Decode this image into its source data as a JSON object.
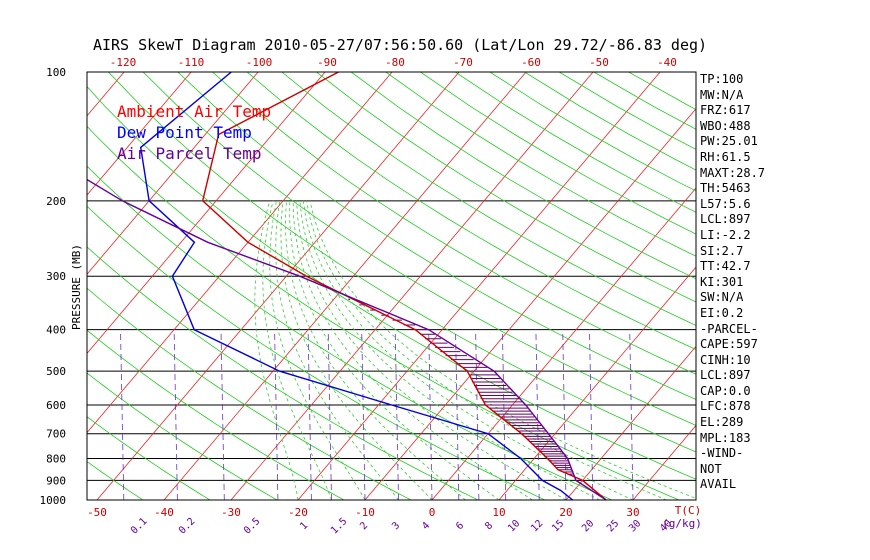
{
  "chart_data": {
    "type": "line",
    "title": "AIRS SkewT Diagram 2010-05-27/07:56:50.60 (Lat/Lon 29.72/-86.83 deg)",
    "ylabel": "PRESSURE (MB)",
    "pressure_ticks": [
      100,
      200,
      300,
      400,
      500,
      600,
      700,
      800,
      900,
      1000
    ],
    "top_temp_ticks": [
      -120,
      -110,
      -100,
      -90,
      -80,
      -70,
      -60,
      -50,
      -40
    ],
    "bottom_temp_ticks": [
      -50,
      -40,
      -30,
      -20,
      -10,
      0,
      10,
      20,
      30
    ],
    "bottom_unit_label": "T(C)",
    "mixing_ratio_ticks": [
      "0.1",
      "0.2",
      "0.5",
      "1",
      "1.5",
      "2",
      "3",
      "4",
      "6",
      "8",
      "10",
      "12",
      "15",
      "20",
      "25",
      "30",
      "40"
    ],
    "mixing_unit_label": "(g/kg)",
    "legend": [
      {
        "name": "Ambient Air Temp",
        "color": "#ff0000"
      },
      {
        "name": "Dew Point Temp",
        "color": "#0000ff"
      },
      {
        "name": "Air Parcel Temp",
        "color": "#660099"
      }
    ],
    "series": [
      {
        "name": "Ambient Air Temp",
        "color": "#cc0000",
        "points": [
          [
            100,
            -68
          ],
          [
            140,
            -78
          ],
          [
            200,
            -72
          ],
          [
            250,
            -60
          ],
          [
            300,
            -47
          ],
          [
            400,
            -24
          ],
          [
            500,
            -11
          ],
          [
            600,
            -4
          ],
          [
            700,
            5
          ],
          [
            800,
            12
          ],
          [
            850,
            15
          ],
          [
            900,
            20
          ],
          [
            1000,
            26
          ]
        ]
      },
      {
        "name": "Dew Point Temp",
        "color": "#0000dd",
        "points": [
          [
            100,
            -84
          ],
          [
            150,
            -88
          ],
          [
            200,
            -80
          ],
          [
            250,
            -68
          ],
          [
            300,
            -67
          ],
          [
            400,
            -57
          ],
          [
            500,
            -39
          ],
          [
            600,
            -18
          ],
          [
            700,
            0
          ],
          [
            800,
            8
          ],
          [
            900,
            14
          ],
          [
            950,
            18
          ],
          [
            1000,
            21
          ]
        ]
      },
      {
        "name": "Air Parcel Temp",
        "color": "#660099",
        "points": [
          [
            100,
            -116
          ],
          [
            150,
            -104
          ],
          [
            200,
            -84
          ],
          [
            250,
            -66
          ],
          [
            300,
            -48
          ],
          [
            400,
            -22
          ],
          [
            500,
            -7
          ],
          [
            600,
            2
          ],
          [
            700,
            9
          ],
          [
            800,
            15
          ],
          [
            900,
            19
          ],
          [
            1000,
            26
          ]
        ]
      }
    ]
  },
  "sidebar": [
    "TP:100",
    "MW:N/A",
    "FRZ:617",
    "WBO:488",
    "PW:25.01",
    "RH:61.5",
    "MAXT:28.7",
    "TH:5463",
    "L57:5.6",
    "LCL:897",
    "LI:-2.2",
    "SI:2.7",
    "TT:42.7",
    "KI:301",
    "SW:N/A",
    "EI:0.2",
    "-PARCEL-",
    "CAPE:597",
    "CINH:10",
    "LCL:897",
    "CAP:0.0",
    "LFC:878",
    "EL:289",
    "MPL:183",
    "-WIND-",
    "NOT",
    "AVAIL"
  ]
}
